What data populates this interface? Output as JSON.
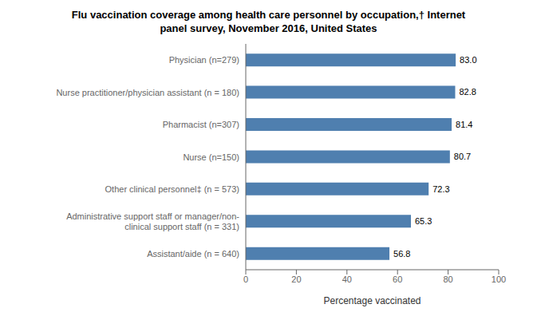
{
  "chart_data": {
    "type": "bar",
    "orientation": "horizontal",
    "title": "Flu vaccination coverage among health care personnel by occupation,† Internet\npanel survey, November 2016, United States",
    "categories": [
      "Physician (n=279)",
      "Nurse practitioner/physician assistant (n = 180)",
      "Pharmacist (n=307)",
      "Nurse (n=150)",
      "Other clinical personnel‡ (n = 573)",
      "Administrative support staff or manager/non-\nclinical support staff (n = 331)",
      "Assistant/aide (n = 640)"
    ],
    "values": [
      83.0,
      82.8,
      81.4,
      80.7,
      72.3,
      65.3,
      56.8
    ],
    "value_labels": [
      "83.0",
      "82.8",
      "81.4",
      "80.7",
      "72.3",
      "65.3",
      "56.8"
    ],
    "color": "#4f7faf",
    "xlabel": "Percentage vaccinated",
    "xlim": [
      0,
      100
    ],
    "xticks": [
      0,
      20,
      40,
      60,
      80,
      100
    ],
    "data_labels": true,
    "grid": false
  }
}
